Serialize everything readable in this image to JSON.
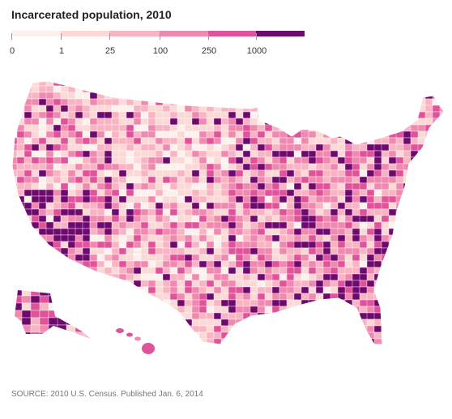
{
  "title": "Incarcerated population, 2010",
  "legend": {
    "tick_labels": [
      "0",
      "1",
      "25",
      "100",
      "250",
      "1000"
    ],
    "colors": [
      "#fdf1ee",
      "#fcd9d6",
      "#f8b4c3",
      "#f089b0",
      "#e0529a",
      "#6e0a6e"
    ]
  },
  "map": {
    "region": "United States (counties)",
    "insets": [
      "Alaska",
      "Hawaii"
    ],
    "boundary_color": "#ffffff"
  },
  "source": "SOURCE: 2010 U.S. Census. Published Jan. 6, 2014"
}
